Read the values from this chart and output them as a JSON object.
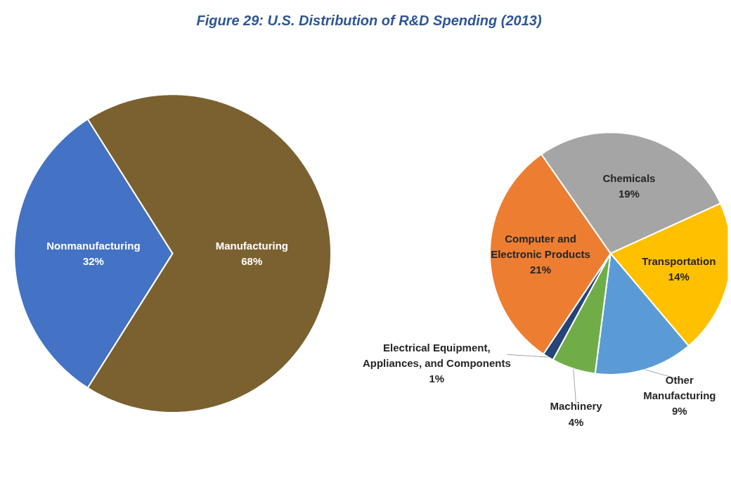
{
  "chart_data": [
    {
      "type": "pie",
      "title": "Figure 29: U.S. Distribution of R&D Spending (2013)",
      "categories": [
        "Nonmanufacturing",
        "Manufacturing"
      ],
      "values": [
        32,
        68
      ],
      "value_labels": [
        "32%",
        "68%"
      ],
      "colors": [
        "#4472c4",
        "#7b6130"
      ]
    },
    {
      "type": "pie",
      "categories": [
        "Chemicals",
        "Transportation",
        "Other Manufacturing",
        "Machinery",
        "Electrical Equipment, Appliances, and Components",
        "Computer and Electronic Products"
      ],
      "values": [
        19,
        14,
        9,
        4,
        1,
        21
      ],
      "value_labels": [
        "19%",
        "14%",
        "9%",
        "4%",
        "1%",
        "21%"
      ],
      "colors": [
        "#a5a5a5",
        "#ffc000",
        "#5b9bd5",
        "#70ad47",
        "#264478",
        "#ed7d31"
      ]
    }
  ]
}
